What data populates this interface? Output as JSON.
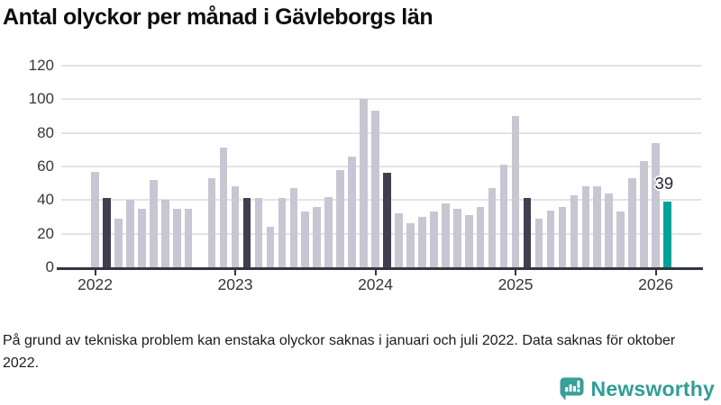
{
  "header": {
    "title": "Antal olyckor per månad i Gävleborgs län"
  },
  "footnote": "På grund av tekniska problem kan enstaka olyckor saknas i januari och juli 2022. Data saknas för oktober 2022.",
  "branding": {
    "name": "Newsworthy",
    "icon": "newsworthy-speech-bubble-chart-icon",
    "color": "#2f9e97"
  },
  "chart_data": {
    "type": "bar",
    "title": "Antal olyckor per månad i Gävleborgs län",
    "x": [
      "2022-01",
      "2022-02",
      "2022-03",
      "2022-04",
      "2022-05",
      "2022-06",
      "2022-07",
      "2022-08",
      "2022-09",
      "2022-10",
      "2022-11",
      "2022-12",
      "2023-01",
      "2023-02",
      "2023-03",
      "2023-04",
      "2023-05",
      "2023-06",
      "2023-07",
      "2023-08",
      "2023-09",
      "2023-10",
      "2023-11",
      "2023-12",
      "2024-01",
      "2024-02",
      "2024-03",
      "2024-04",
      "2024-05",
      "2024-06",
      "2024-07",
      "2024-08",
      "2024-09",
      "2024-10",
      "2024-11",
      "2024-12",
      "2025-01",
      "2025-02",
      "2025-03",
      "2025-04",
      "2025-05",
      "2025-06",
      "2025-07",
      "2025-08",
      "2025-09",
      "2025-10",
      "2025-11",
      "2025-12",
      "2026-01",
      "2026-02"
    ],
    "values": [
      57,
      41,
      29,
      40,
      35,
      52,
      40,
      35,
      35,
      null,
      53,
      71,
      48,
      41,
      41,
      24,
      41,
      47,
      33,
      36,
      42,
      58,
      66,
      100,
      93,
      56,
      32,
      26,
      30,
      33,
      38,
      35,
      31,
      36,
      47,
      61,
      90,
      41,
      29,
      34,
      36,
      43,
      48,
      48,
      44,
      33,
      53,
      63,
      74,
      39
    ],
    "missing_months": [
      "2022-10"
    ],
    "highlight_dark_indices": [
      1,
      13,
      25,
      37
    ],
    "highlight_current_index": 49,
    "annotation": {
      "text": "39",
      "index": 49
    },
    "yticks": [
      0,
      20,
      40,
      60,
      80,
      100,
      120
    ],
    "ylim": [
      0,
      120
    ],
    "xticks": [
      {
        "label": "2022",
        "index": 0
      },
      {
        "label": "2023",
        "index": 12
      },
      {
        "label": "2024",
        "index": 24
      },
      {
        "label": "2025",
        "index": 36
      },
      {
        "label": "2026",
        "index": 48
      }
    ],
    "grid": true,
    "legend": false,
    "colors": {
      "bar": "#c9c6d3",
      "bar_dark": "#403e4f",
      "bar_current": "#00a39a",
      "gridline": "#e4e4e7",
      "axis": "#35353f"
    }
  }
}
